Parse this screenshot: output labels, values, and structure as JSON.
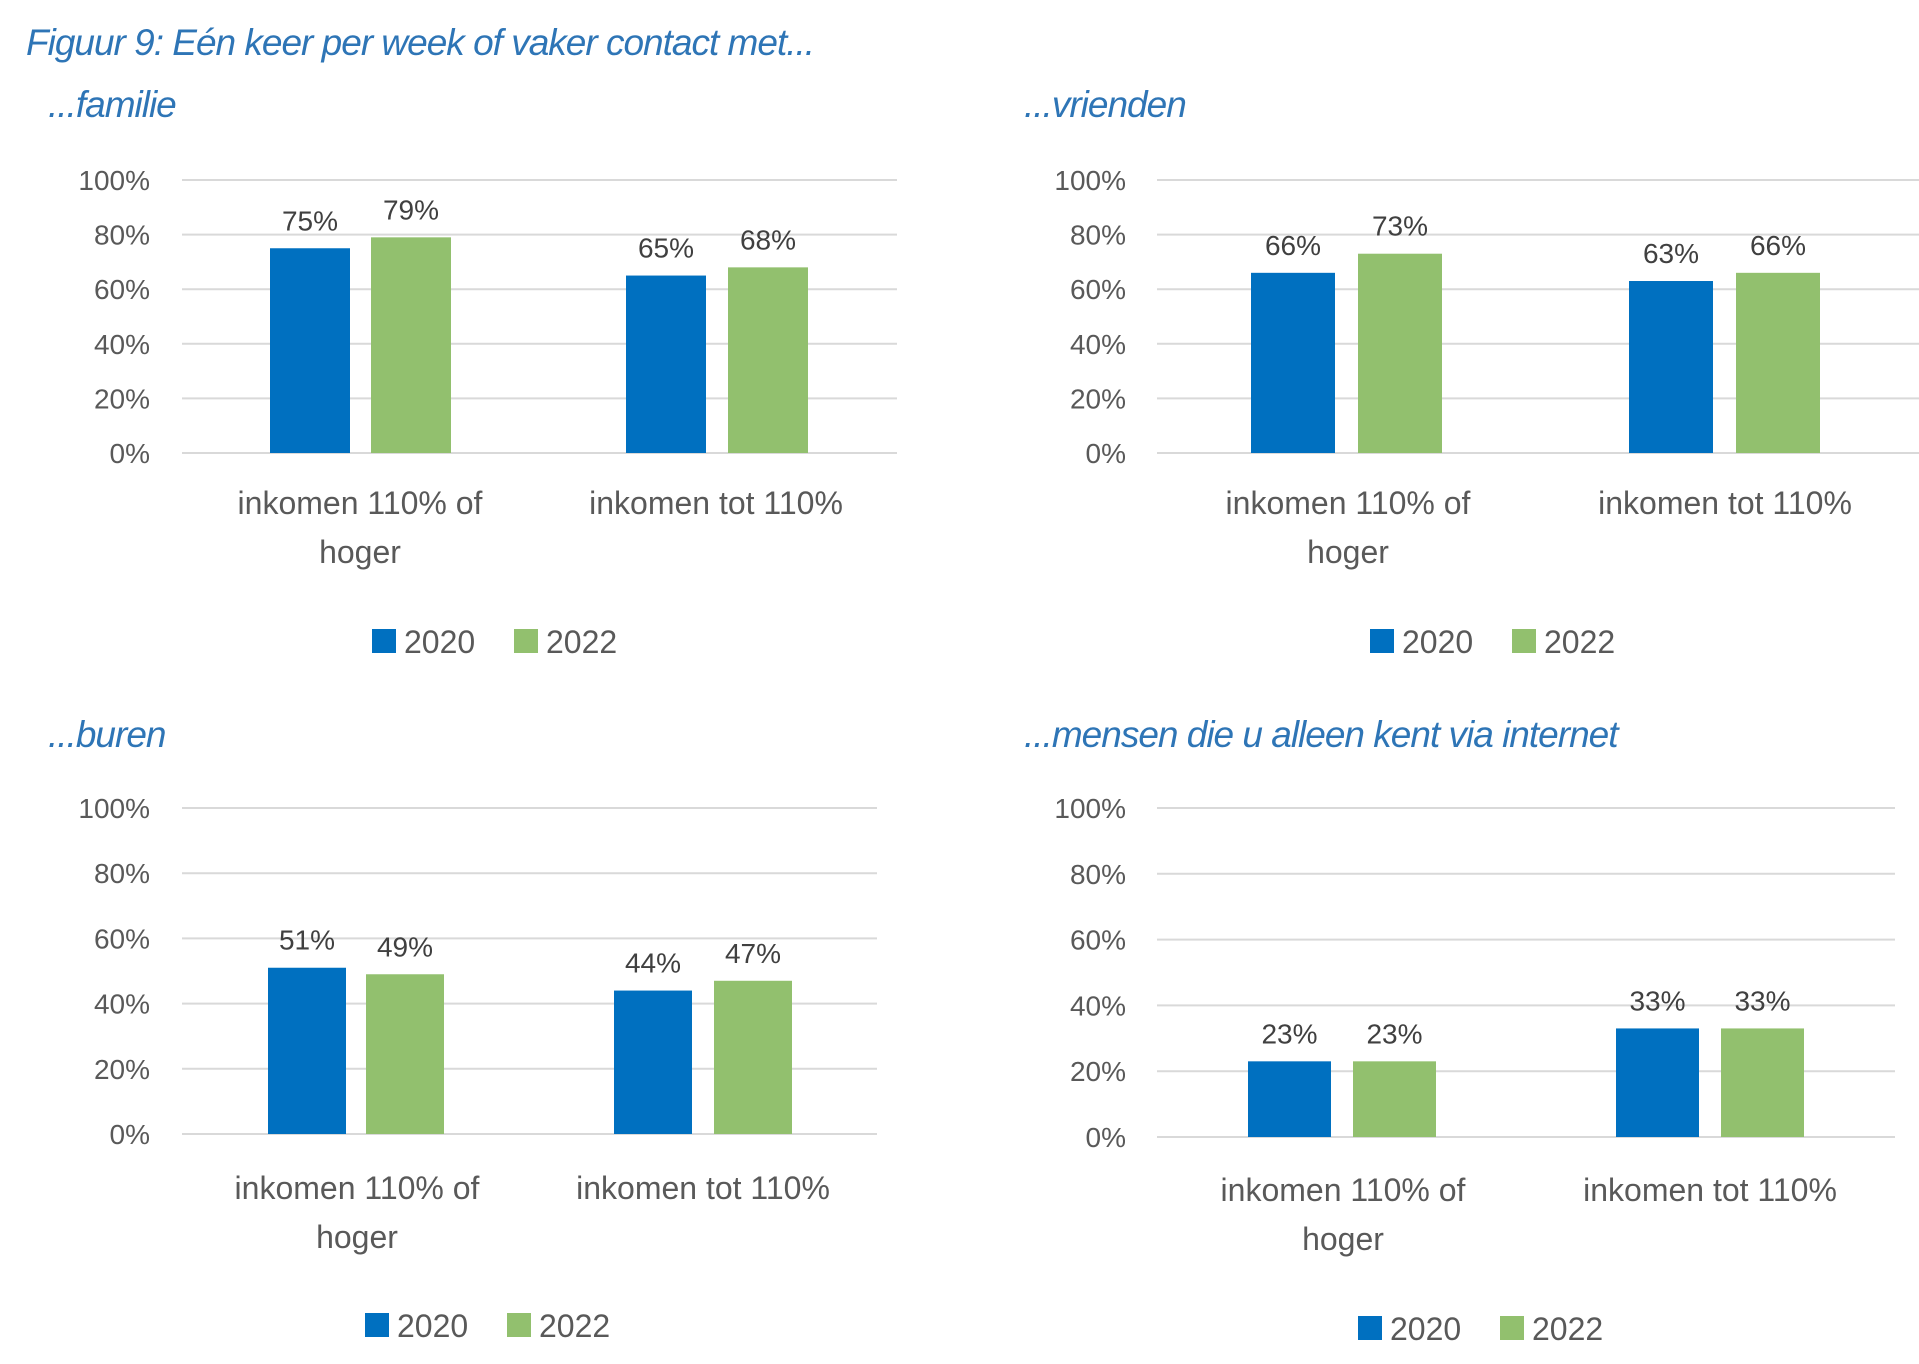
{
  "figure_title": "Figuur 9: Eén keer per week of vaker contact met...",
  "colors": {
    "2020": "#0070c0",
    "2022": "#92c06e",
    "title": "#2e75b6",
    "grid": "#d9d9d9",
    "text": "#595959"
  },
  "chart_data": [
    {
      "type": "bar",
      "title": "...familie",
      "categories": [
        "inkomen 110% of hoger",
        "inkomen tot 110%"
      ],
      "category_lines": [
        [
          "inkomen 110% of",
          "hoger"
        ],
        [
          "inkomen tot 110%"
        ]
      ],
      "series": [
        {
          "name": "2020",
          "values": [
            75,
            65
          ],
          "labels": [
            "75%",
            "65%"
          ]
        },
        {
          "name": "2022",
          "values": [
            79,
            68
          ],
          "labels": [
            "79%",
            "68%"
          ]
        }
      ],
      "yticks": [
        "0%",
        "20%",
        "40%",
        "60%",
        "80%",
        "100%"
      ],
      "ylim": [
        0,
        100
      ],
      "xlabel": "",
      "ylabel": "",
      "grid": true,
      "legend": "bottom"
    },
    {
      "type": "bar",
      "title": "...vrienden",
      "categories": [
        "inkomen 110% of hoger",
        "inkomen tot 110%"
      ],
      "category_lines": [
        [
          "inkomen 110% of",
          "hoger"
        ],
        [
          "inkomen tot 110%"
        ]
      ],
      "series": [
        {
          "name": "2020",
          "values": [
            66,
            63
          ],
          "labels": [
            "66%",
            "63%"
          ]
        },
        {
          "name": "2022",
          "values": [
            73,
            66
          ],
          "labels": [
            "73%",
            "66%"
          ]
        }
      ],
      "yticks": [
        "0%",
        "20%",
        "40%",
        "60%",
        "80%",
        "100%"
      ],
      "ylim": [
        0,
        100
      ],
      "xlabel": "",
      "ylabel": "",
      "grid": true,
      "legend": "bottom"
    },
    {
      "type": "bar",
      "title": "...buren",
      "categories": [
        "inkomen 110% of hoger",
        "inkomen tot 110%"
      ],
      "category_lines": [
        [
          "inkomen 110% of",
          "hoger"
        ],
        [
          "inkomen tot 110%"
        ]
      ],
      "series": [
        {
          "name": "2020",
          "values": [
            51,
            44
          ],
          "labels": [
            "51%",
            "44%"
          ]
        },
        {
          "name": "2022",
          "values": [
            49,
            47
          ],
          "labels": [
            "49%",
            "47%"
          ]
        }
      ],
      "yticks": [
        "0%",
        "20%",
        "40%",
        "60%",
        "80%",
        "100%"
      ],
      "ylim": [
        0,
        100
      ],
      "xlabel": "",
      "ylabel": "",
      "grid": true,
      "legend": "bottom"
    },
    {
      "type": "bar",
      "title": "...mensen die u alleen kent via internet",
      "categories": [
        "inkomen 110% of hoger",
        "inkomen tot 110%"
      ],
      "category_lines": [
        [
          "inkomen 110% of",
          "hoger"
        ],
        [
          "inkomen tot 110%"
        ]
      ],
      "series": [
        {
          "name": "2020",
          "values": [
            23,
            33
          ],
          "labels": [
            "23%",
            "33%"
          ]
        },
        {
          "name": "2022",
          "values": [
            23,
            33
          ],
          "labels": [
            "23%",
            "33%"
          ]
        }
      ],
      "yticks": [
        "0%",
        "20%",
        "40%",
        "60%",
        "80%",
        "100%"
      ],
      "ylim": [
        0,
        100
      ],
      "xlabel": "",
      "ylabel": "",
      "grid": true,
      "legend": "bottom"
    }
  ]
}
